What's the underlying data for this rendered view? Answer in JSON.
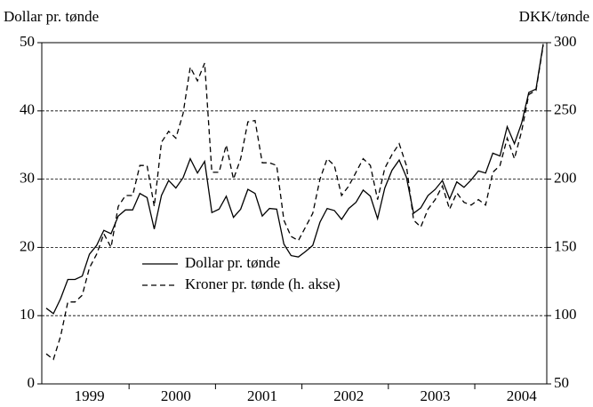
{
  "chart_data": {
    "type": "line",
    "ylabel": "Dollar pr. tønde",
    "y2label": "DKK/tønde",
    "categories": [
      null,
      null,
      null,
      null,
      null,
      null,
      "1999",
      null,
      null,
      null,
      null,
      null,
      null,
      null,
      null,
      null,
      null,
      null,
      "2000",
      null,
      null,
      null,
      null,
      null,
      null,
      null,
      null,
      null,
      null,
      null,
      "2001",
      null,
      null,
      null,
      null,
      null,
      null,
      null,
      null,
      null,
      null,
      null,
      "2002",
      null,
      null,
      null,
      null,
      null,
      null,
      null,
      null,
      null,
      null,
      null,
      "2003",
      null,
      null,
      null,
      null,
      null,
      null,
      null,
      null,
      null,
      null,
      null,
      "2004",
      null,
      null,
      null
    ],
    "series": [
      {
        "name": "Dollar pr. tønde",
        "color": "#000000",
        "dash": "solid",
        "axis": "y",
        "values": [
          11.1,
          10.3,
          12.5,
          15.3,
          15.3,
          15.8,
          19.0,
          20.3,
          22.5,
          22.0,
          24.6,
          25.5,
          25.5,
          27.9,
          27.3,
          22.7,
          27.6,
          29.8,
          28.7,
          30.2,
          33.0,
          30.9,
          32.6,
          25.1,
          25.6,
          27.5,
          24.4,
          25.6,
          28.5,
          27.9,
          24.6,
          25.7,
          25.6,
          20.5,
          18.8,
          18.6,
          19.4,
          20.3,
          23.7,
          25.7,
          25.4,
          24.1,
          25.7,
          26.6,
          28.4,
          27.5,
          24.2,
          28.7,
          31.3,
          32.8,
          30.3,
          25.0,
          25.8,
          27.6,
          28.5,
          29.8,
          27.1,
          29.6,
          28.8,
          29.9,
          31.2,
          30.9,
          33.8,
          33.4,
          37.7,
          35.2,
          38.2,
          42.7,
          43.2,
          49.8
        ]
      },
      {
        "name": "Kroner pr. tønde (h. akse)",
        "color": "#000000",
        "dash": "dashed",
        "axis": "y2",
        "values": [
          72,
          68,
          85,
          110,
          110,
          115,
          135,
          145,
          160,
          150,
          180,
          188,
          188,
          210,
          210,
          180,
          227,
          235,
          230,
          248,
          282,
          272,
          285,
          205,
          205,
          225,
          200,
          215,
          242,
          243,
          212,
          212,
          210,
          170,
          158,
          155,
          165,
          175,
          200,
          215,
          210,
          188,
          195,
          205,
          215,
          210,
          185,
          208,
          218,
          226,
          210,
          170,
          165,
          178,
          185,
          195,
          178,
          190,
          183,
          181,
          185,
          181,
          205,
          210,
          230,
          215,
          235,
          262,
          265,
          298
        ]
      }
    ],
    "ylim": [
      0,
      50
    ],
    "yticks": [
      0,
      10,
      20,
      30,
      40,
      50
    ],
    "y2lim": [
      50,
      300
    ],
    "y2ticks": [
      50,
      100,
      150,
      200,
      250,
      300
    ],
    "grid": true
  }
}
